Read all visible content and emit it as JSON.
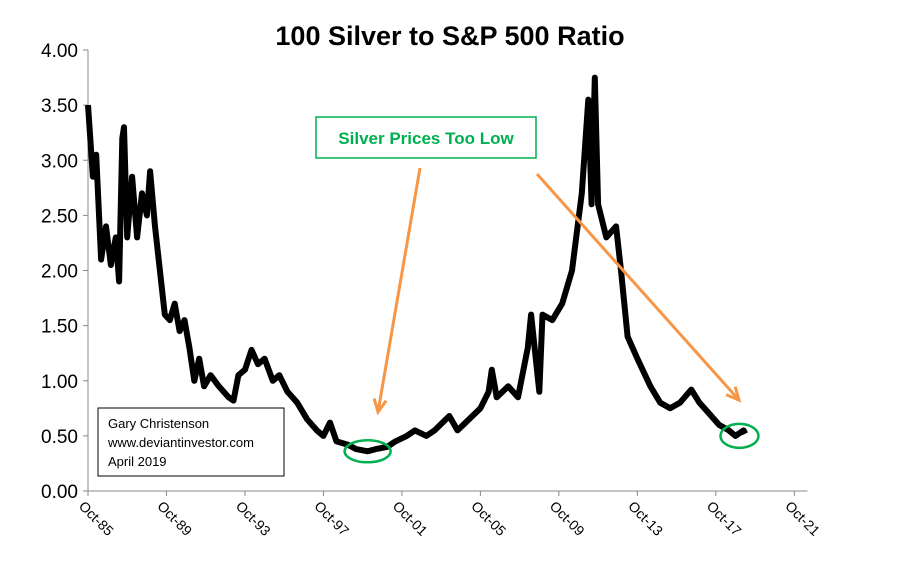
{
  "chart_data": {
    "type": "line",
    "title": "100 Silver to S&P 500 Ratio",
    "xlabel": "",
    "ylabel": "",
    "ylim": [
      0,
      4
    ],
    "yticks": [
      "0.00",
      "0.50",
      "1.00",
      "1.50",
      "2.00",
      "2.50",
      "3.00",
      "3.50",
      "4.00"
    ],
    "xlim": [
      "1985-10",
      "2022-06"
    ],
    "xticks": [
      "Oct-85",
      "Oct-89",
      "Oct-93",
      "Oct-97",
      "Oct-01",
      "Oct-05",
      "Oct-09",
      "Oct-13",
      "Oct-17",
      "Oct-21"
    ],
    "grid": false,
    "line_color": "#000000",
    "series": [
      {
        "x": [
          "1985-10",
          "1986-01",
          "1986-03",
          "1986-06",
          "1986-09",
          "1986-12",
          "1987-03",
          "1987-05",
          "1987-07",
          "1987-08",
          "1987-10",
          "1988-01",
          "1988-04",
          "1988-07",
          "1988-10",
          "1988-12",
          "1989-03",
          "1989-06",
          "1989-09",
          "1989-12",
          "1990-03",
          "1990-06",
          "1990-09",
          "1990-12",
          "1991-03",
          "1991-06",
          "1991-09",
          "1992-01",
          "1992-06",
          "1992-12",
          "1993-03",
          "1993-06",
          "1993-10",
          "1994-02",
          "1994-06",
          "1994-10",
          "1995-03",
          "1995-07",
          "1995-12",
          "1996-06",
          "1996-12",
          "1997-06",
          "1997-10",
          "1998-02",
          "1998-06",
          "1999-01",
          "1999-06",
          "2000-01",
          "2000-06",
          "2001-01",
          "2001-06",
          "2002-01",
          "2002-06",
          "2003-01",
          "2003-06",
          "2004-03",
          "2004-08",
          "2005-03",
          "2005-10",
          "2006-03",
          "2006-05",
          "2006-08",
          "2007-03",
          "2007-09",
          "2008-03",
          "2008-05",
          "2008-10",
          "2008-12",
          "2009-06",
          "2009-12",
          "2010-06",
          "2010-12",
          "2011-04",
          "2011-06",
          "2011-08",
          "2011-10",
          "2012-03",
          "2012-09",
          "2012-12",
          "2013-04",
          "2013-10",
          "2014-06",
          "2014-12",
          "2015-06",
          "2015-12",
          "2016-07",
          "2016-12",
          "2017-06",
          "2017-12",
          "2018-06",
          "2018-10",
          "2019-03",
          "2019-04"
        ],
        "y": [
          3.5,
          2.85,
          3.05,
          2.1,
          2.4,
          2.05,
          2.3,
          1.9,
          3.2,
          3.3,
          2.3,
          2.85,
          2.3,
          2.7,
          2.5,
          2.9,
          2.4,
          2.0,
          1.6,
          1.55,
          1.7,
          1.45,
          1.55,
          1.3,
          1.0,
          1.2,
          0.95,
          1.05,
          0.95,
          0.85,
          0.82,
          1.05,
          1.1,
          1.28,
          1.15,
          1.2,
          1.0,
          1.05,
          0.9,
          0.8,
          0.65,
          0.55,
          0.5,
          0.62,
          0.45,
          0.42,
          0.38,
          0.36,
          0.38,
          0.4,
          0.45,
          0.5,
          0.55,
          0.5,
          0.55,
          0.68,
          0.55,
          0.65,
          0.75,
          0.9,
          1.1,
          0.85,
          0.95,
          0.85,
          1.3,
          1.6,
          0.9,
          1.6,
          1.55,
          1.7,
          2.0,
          2.7,
          3.55,
          2.6,
          3.75,
          2.6,
          2.3,
          2.4,
          2.0,
          1.4,
          1.2,
          0.95,
          0.8,
          0.75,
          0.8,
          0.92,
          0.8,
          0.7,
          0.6,
          0.55,
          0.5,
          0.55,
          0.52
        ]
      }
    ],
    "annotations": {
      "callout": "Silver Prices Too Low",
      "callout_color": "#00b050",
      "arrow_color": "#f79646",
      "circled_lows": [
        "2000-01",
        "2018-10"
      ],
      "credit_lines": [
        "Gary Christenson",
        "www.deviantinvestor.com",
        "April 2019"
      ]
    }
  }
}
